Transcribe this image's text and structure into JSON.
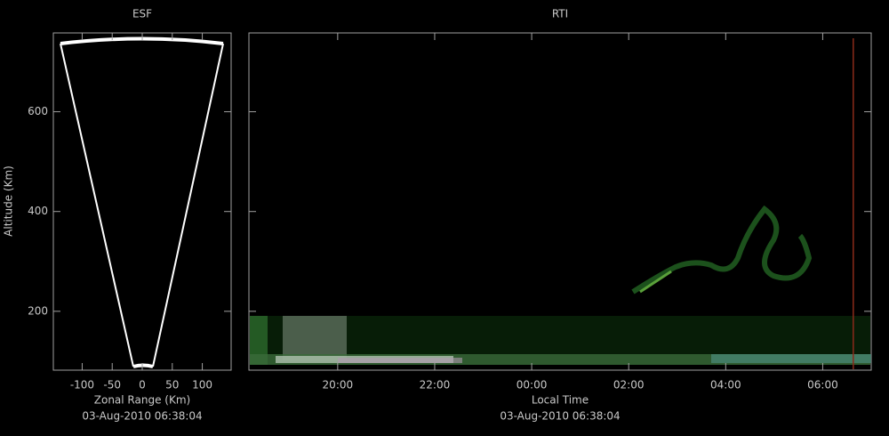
{
  "chart_data": [
    {
      "type": "sector",
      "title": "ESF",
      "xlabel": "Zonal Range (Km)",
      "ylabel": "Altitude (Km)",
      "footer": "03-Aug-2010 06:38:04",
      "xlim": [
        -148,
        148
      ],
      "xticks": [
        -100,
        -50,
        0,
        50,
        100
      ],
      "ylim": [
        82,
        758
      ],
      "yticks": [
        200,
        400,
        600
      ]
    },
    {
      "type": "rti",
      "title": "RTI",
      "xlabel": "Local Time",
      "footer": "03-Aug-2010 06:38:04",
      "xlim": [
        18.17,
        31.0
      ],
      "xticks": [
        {
          "value": 20,
          "label": "20:00"
        },
        {
          "value": 22,
          "label": "22:00"
        },
        {
          "value": 24,
          "label": "00:00"
        },
        {
          "value": 26,
          "label": "02:00"
        },
        {
          "value": 28,
          "label": "04:00"
        },
        {
          "value": 30,
          "label": "06:00"
        }
      ],
      "ylim": [
        82,
        758
      ],
      "cursor": 30.63,
      "cursor_color": "#8b2a1a"
    }
  ]
}
